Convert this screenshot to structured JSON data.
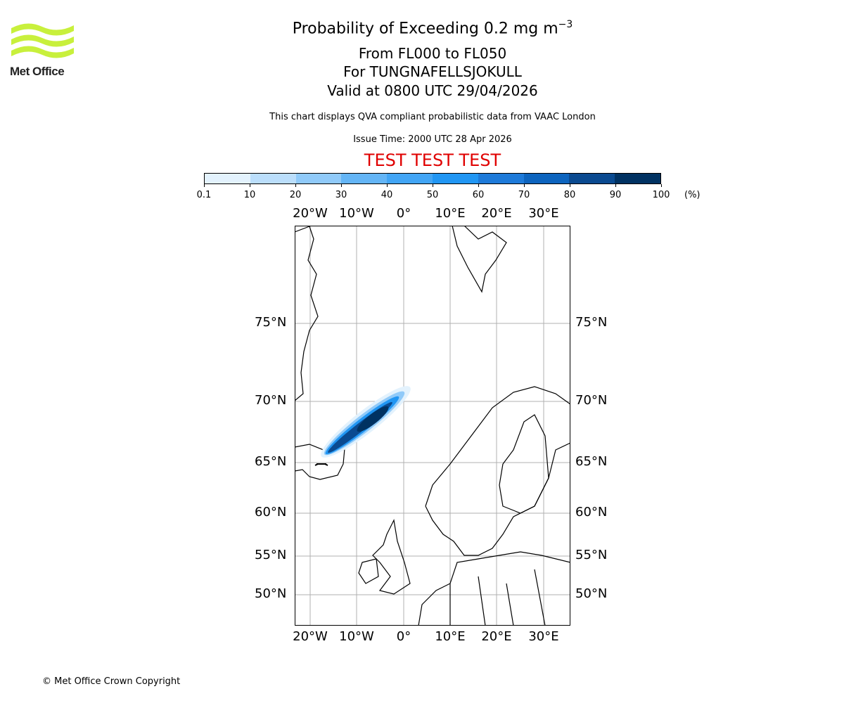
{
  "logo": {
    "text": "Met Office",
    "color": "#c8f03c"
  },
  "header": {
    "title": "Probability of Exceeding 0.2 mg m",
    "title_sup": "−3",
    "line2": "From FL000 to FL050",
    "line3": "For TUNGNAFELLSJOKULL",
    "line4": "Valid at 0800 UTC 29/04/2026",
    "description": "This chart displays QVA compliant probabilistic data from VAAC London",
    "issue_time": "Issue Time: 2000 UTC 28 Apr 2026",
    "test_banner": "TEST TEST TEST"
  },
  "colorbar": {
    "ticks": [
      "0.1",
      "10",
      "20",
      "30",
      "40",
      "50",
      "60",
      "70",
      "80",
      "90",
      "100"
    ],
    "unit": "(%)",
    "colors": [
      "#e3f2fd",
      "#bbdefb",
      "#90caf9",
      "#64b5f6",
      "#42a5f5",
      "#2196f3",
      "#1e7ad9",
      "#0d64be",
      "#0a4a90",
      "#003262"
    ]
  },
  "map": {
    "lon_labels": [
      "20°W",
      "10°W",
      "0°",
      "10°E",
      "20°E",
      "30°E"
    ],
    "lat_labels": [
      "75°N",
      "70°N",
      "65°N",
      "60°N",
      "55°N",
      "50°N"
    ]
  },
  "footer": {
    "copyright": "© Met Office Crown Copyright"
  }
}
